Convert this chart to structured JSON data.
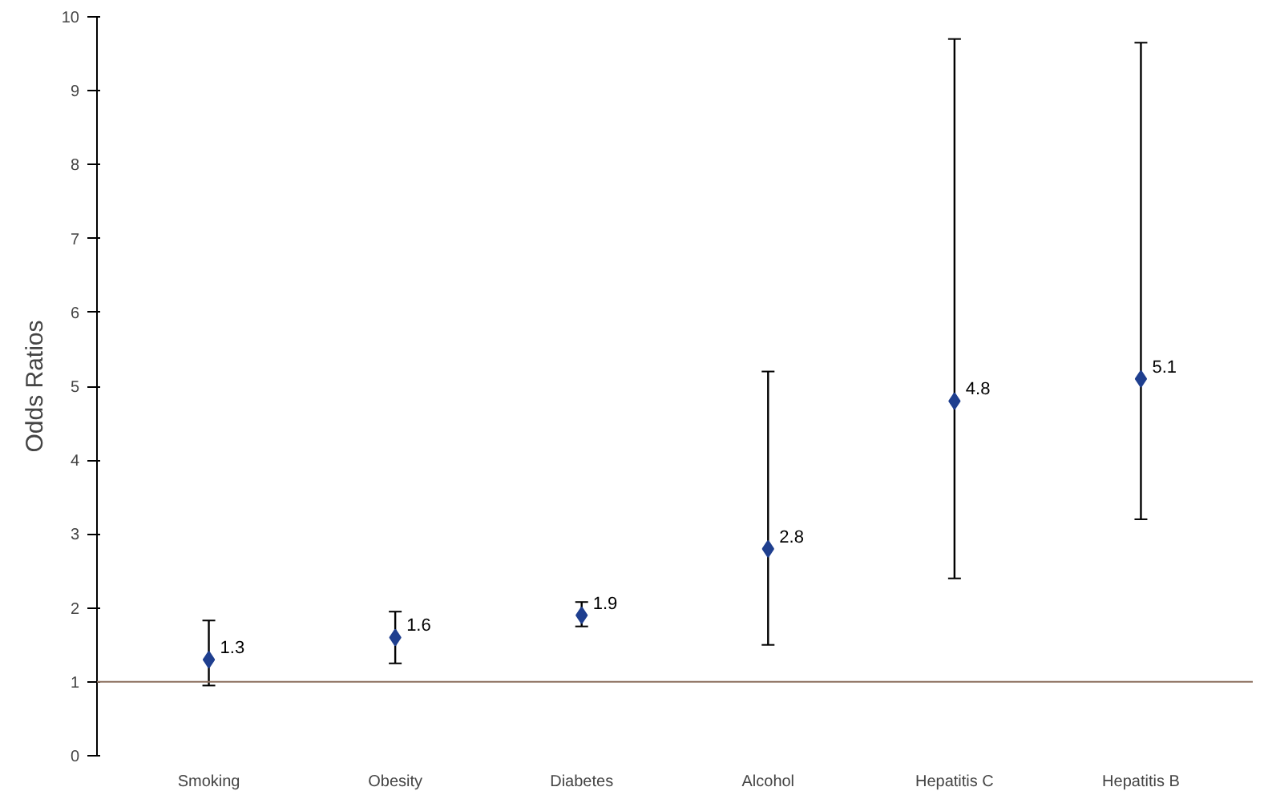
{
  "chart_data": {
    "type": "scatter",
    "ylabel": "Odds Ratios",
    "categories": [
      "Smoking",
      "Obesity",
      "Diabetes",
      "Alcohol",
      "Hepatitis C",
      "Hepatitis B"
    ],
    "values": [
      1.3,
      1.6,
      1.9,
      2.8,
      4.8,
      5.1
    ],
    "errors": [
      [
        0.95,
        1.83
      ],
      [
        1.25,
        1.95
      ],
      [
        1.75,
        2.08
      ],
      [
        1.5,
        5.2
      ],
      [
        2.4,
        9.7
      ],
      [
        3.2,
        9.65
      ]
    ],
    "color": "#1f3f8f",
    "marker": "diamond",
    "data_labels": true,
    "ylim": [
      0,
      10
    ],
    "yticks": [
      0,
      1,
      2,
      3,
      4,
      5,
      6,
      7,
      8,
      9,
      10
    ],
    "grid": false,
    "ref_lines": [
      {
        "axis": "y",
        "value": 1,
        "color": "#8b6f5e"
      }
    ]
  }
}
